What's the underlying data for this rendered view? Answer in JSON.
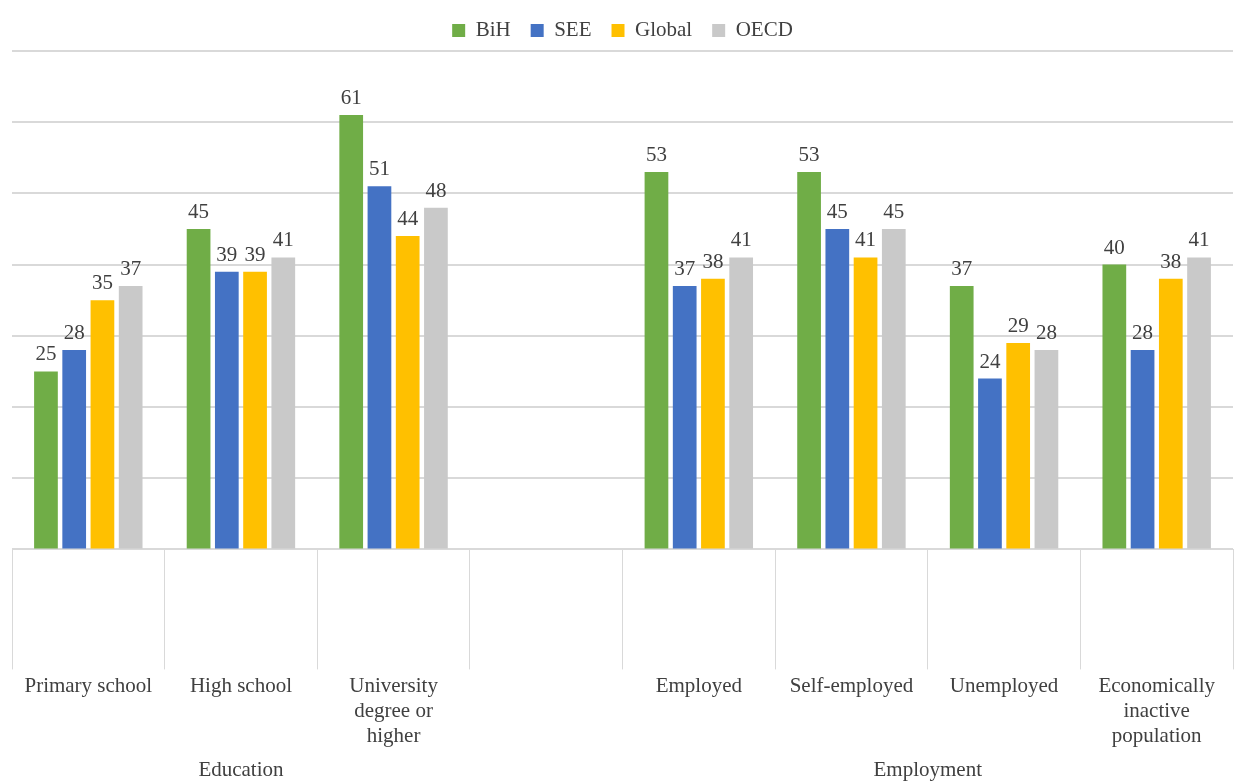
{
  "chart_data": {
    "type": "bar",
    "categories": [
      "Primary school",
      "High school",
      "University degree or higher",
      null,
      "Employed",
      "Self-employed",
      "Unemployed",
      "Economically inactive population"
    ],
    "series": [
      {
        "name": "BiH",
        "color": "#70ad47",
        "values": [
          25,
          45,
          61,
          null,
          53,
          53,
          37,
          40
        ]
      },
      {
        "name": "SEE",
        "color": "#4472c4",
        "values": [
          28,
          39,
          51,
          null,
          37,
          45,
          24,
          28
        ]
      },
      {
        "name": "Global",
        "color": "#ffc000",
        "values": [
          35,
          39,
          44,
          null,
          38,
          41,
          29,
          38
        ]
      },
      {
        "name": "OECD",
        "color": "#c9c9c9",
        "values": [
          37,
          41,
          48,
          null,
          41,
          45,
          28,
          41
        ]
      }
    ],
    "ylim": [
      0,
      70
    ],
    "yticks": [
      {
        "value": 0,
        "label": null
      },
      {
        "value": 10,
        "label": null
      },
      {
        "value": 20,
        "label": null
      },
      {
        "value": 30,
        "label": null
      },
      {
        "value": 40,
        "label": null
      },
      {
        "value": 50,
        "label": null
      },
      {
        "value": 60,
        "label": null
      },
      {
        "value": 70,
        "label": null
      }
    ],
    "tick_labels": "x",
    "grid": "y",
    "legend": "top",
    "data_labels": true,
    "annotations": [
      "Education",
      "Employment"
    ]
  }
}
